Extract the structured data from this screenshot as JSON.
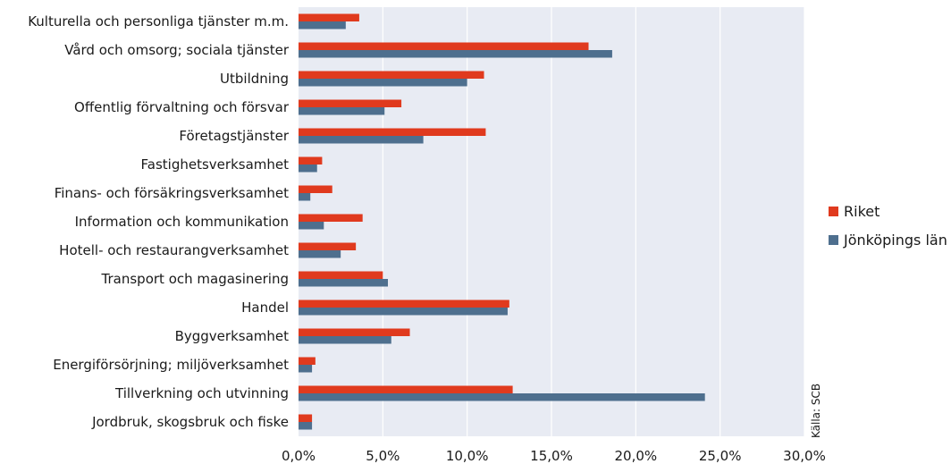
{
  "chart_data": {
    "type": "bar",
    "orientation": "horizontal",
    "categories": [
      "Kulturella och personliga tjänster m.m.",
      "Vård och omsorg; sociala tjänster",
      "Utbildning",
      "Offentlig förvaltning och försvar",
      "Företagstjänster",
      "Fastighetsverksamhet",
      "Finans- och försäkringsverksamhet",
      "Information och kommunikation",
      "Hotell- och restaurangverksamhet",
      "Transport och magasinering",
      "Handel",
      "Byggverksamhet",
      "Energiförsörjning; miljöverksamhet",
      "Tillverkning och utvinning",
      "Jordbruk, skogsbruk och fiske"
    ],
    "series": [
      {
        "name": "Riket",
        "color": "#e03a1e",
        "values": [
          3.6,
          17.2,
          11.0,
          6.1,
          11.1,
          1.4,
          2.0,
          3.8,
          3.4,
          5.0,
          12.5,
          6.6,
          1.0,
          12.7,
          0.8
        ]
      },
      {
        "name": "Jönköpings län",
        "color": "#4e6f8e",
        "values": [
          2.8,
          18.6,
          10.0,
          5.1,
          7.4,
          1.1,
          0.7,
          1.5,
          2.5,
          5.3,
          12.4,
          5.5,
          0.8,
          24.1,
          0.8
        ]
      }
    ],
    "xlim": [
      0,
      30
    ],
    "xticks": [
      "0,0%",
      "5,0%",
      "10,0%",
      "15,0%",
      "20,0%",
      "25,0%",
      "30,0%"
    ],
    "grid": true,
    "legend_position": "right",
    "source": "Källa: SCB"
  }
}
